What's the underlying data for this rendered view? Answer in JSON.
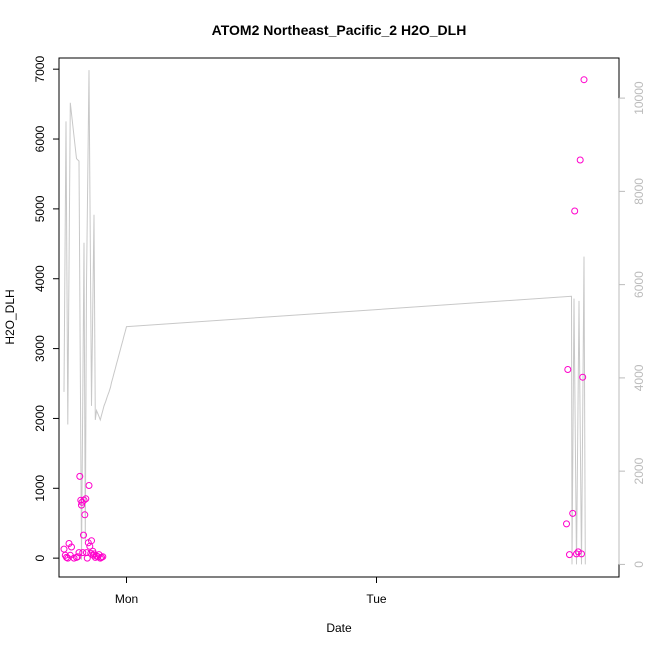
{
  "chart_data": {
    "type": "scatter",
    "title": "ATOM2 Northeast_Pacific_2 H2O_DLH",
    "xlabel": "Date",
    "ylabel": "H2O_DLH",
    "y_ticks": [
      0,
      1000,
      2000,
      3000,
      4000,
      5000,
      6000,
      7000
    ],
    "y_tick_labels": [
      "0",
      "1000",
      "2000",
      "3000",
      "4000",
      "5000",
      "6000",
      "7000"
    ],
    "y2_ticks": [
      0,
      2000,
      4000,
      6000,
      8000,
      10000
    ],
    "y2_tick_labels": [
      "0",
      "2000",
      "4000",
      "6000",
      "8000",
      "10000"
    ],
    "x_ticks": [
      "Mon",
      "Tue"
    ],
    "colors": {
      "points": "#ff00cc",
      "line": "#c8c8c8",
      "right_axis": "#bbbbbb"
    },
    "series": [
      {
        "axis": "left",
        "style": "points",
        "x": [
          -0.25,
          -0.245,
          -0.24,
          -0.235,
          -0.23,
          -0.225,
          -0.22,
          -0.21,
          -0.2,
          -0.195,
          -0.19,
          -0.187,
          -0.183,
          -0.18,
          -0.178,
          -0.175,
          -0.172,
          -0.17,
          -0.167,
          -0.163,
          -0.16,
          -0.157,
          -0.153,
          -0.15,
          -0.147,
          -0.143,
          -0.14,
          -0.135,
          -0.133,
          -0.13,
          -0.125,
          -0.12,
          -0.115,
          -0.11,
          -0.105,
          -0.1,
          -0.095,
          1.76,
          1.765,
          1.772,
          1.785,
          1.793,
          1.8,
          1.807,
          1.815,
          1.82,
          1.825,
          1.83
        ],
        "y": [
          130,
          40,
          10,
          0,
          210,
          40,
          160,
          0,
          10,
          20,
          80,
          1170,
          830,
          760,
          800,
          80,
          330,
          830,
          620,
          850,
          80,
          0,
          220,
          1040,
          170,
          70,
          250,
          100,
          40,
          60,
          10,
          30,
          20,
          50,
          0,
          10,
          20,
          490,
          2700,
          50,
          640,
          4970,
          60,
          90,
          5700,
          60,
          2590,
          6850
        ]
      },
      {
        "axis": "right",
        "style": "line",
        "x": [
          -0.25,
          -0.242,
          -0.235,
          -0.225,
          -0.2,
          -0.19,
          -0.18,
          -0.17,
          -0.165,
          -0.16,
          -0.15,
          -0.14,
          -0.13,
          -0.125,
          -0.12,
          -0.112,
          -0.105,
          -0.1,
          -0.095,
          -0.09,
          -0.083,
          -0.077,
          -0.07,
          -0.064,
          -0.06,
          -0.055,
          -0.05,
          -0.045,
          -0.04,
          -0.035,
          -0.03,
          -0.025,
          -0.02,
          -0.015,
          -0.01,
          -0.005,
          0.0,
          1.78,
          1.782,
          1.79,
          1.8,
          1.81,
          1.82,
          1.83,
          1.835
        ],
        "y": [
          3700,
          9500,
          3000,
          9900,
          8700,
          8650,
          100,
          6900,
          500,
          6000,
          10600,
          3400,
          7500,
          3100,
          3300,
          3200,
          3100,
          3200,
          3300,
          3400,
          3500,
          3600,
          3700,
          3800,
          3900,
          4000,
          4100,
          4200,
          4300,
          4400,
          4500,
          4600,
          4700,
          4800,
          4900,
          5000,
          5100,
          5750,
          0,
          5700,
          0,
          5650,
          0,
          6600,
          0
        ]
      }
    ]
  }
}
